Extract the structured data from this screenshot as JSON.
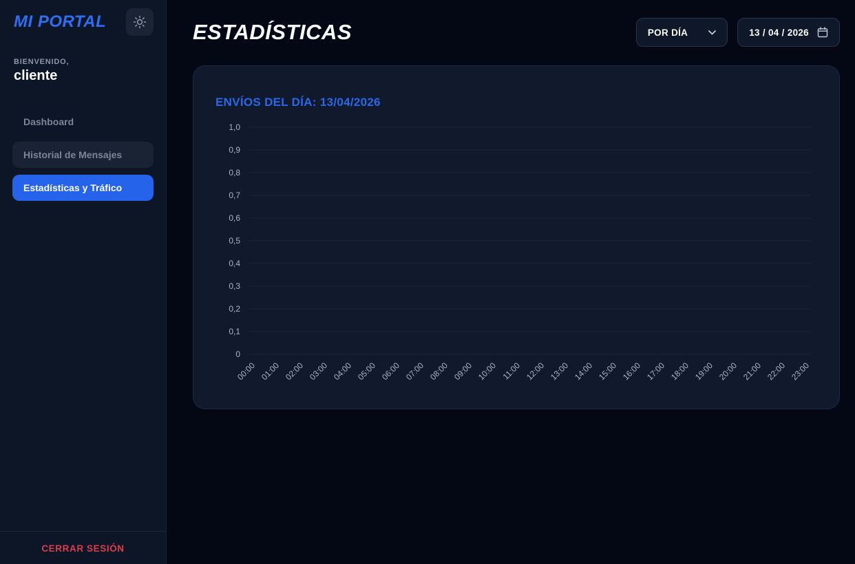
{
  "sidebar": {
    "logo": "MI PORTAL",
    "welcome_label": "BIENVENIDO,",
    "username": "cliente",
    "items": [
      {
        "label": "Dashboard",
        "state": "default"
      },
      {
        "label": "Historial de Mensajes",
        "state": "hovered"
      },
      {
        "label": "Estadísticas y Tráfico",
        "state": "active"
      }
    ],
    "logout_label": "CERRAR SESIÓN"
  },
  "header": {
    "title": "ESTADÍSTICAS",
    "period_select": {
      "value": "POR DÍA"
    },
    "date_input": {
      "value": "13 / 04 / 2026"
    }
  },
  "card": {
    "title": "ENVÍOS DEL DÍA: 13/04/2026"
  },
  "chart_data": {
    "type": "line",
    "title": "ENVÍOS DEL DÍA: 13/04/2026",
    "x": [
      "00:00",
      "01:00",
      "02:00",
      "03:00",
      "04:00",
      "05:00",
      "06:00",
      "07:00",
      "08:00",
      "09:00",
      "10:00",
      "11:00",
      "12:00",
      "13:00",
      "14:00",
      "15:00",
      "16:00",
      "17:00",
      "18:00",
      "19:00",
      "20:00",
      "21:00",
      "22:00",
      "23:00"
    ],
    "series": [],
    "empty": true,
    "ylim": [
      0,
      1
    ],
    "ytick_labels": [
      "0",
      "0,1",
      "0,2",
      "0,3",
      "0,4",
      "0,5",
      "0,6",
      "0,7",
      "0,8",
      "0,9",
      "1,0"
    ],
    "grid": "horizontal-only",
    "legend": "none"
  },
  "colors": {
    "accent_blue": "#2563eb",
    "logo_blue": "#2f6df2",
    "card_title_blue": "#2c67e8",
    "logout_red": "#dc3d4b",
    "page_bg": "#040814",
    "sidebar_bg": "#0d1626",
    "card_bg": "#111a2c",
    "gridline": "#1c2638",
    "axis_label": "#a9b4c6"
  }
}
